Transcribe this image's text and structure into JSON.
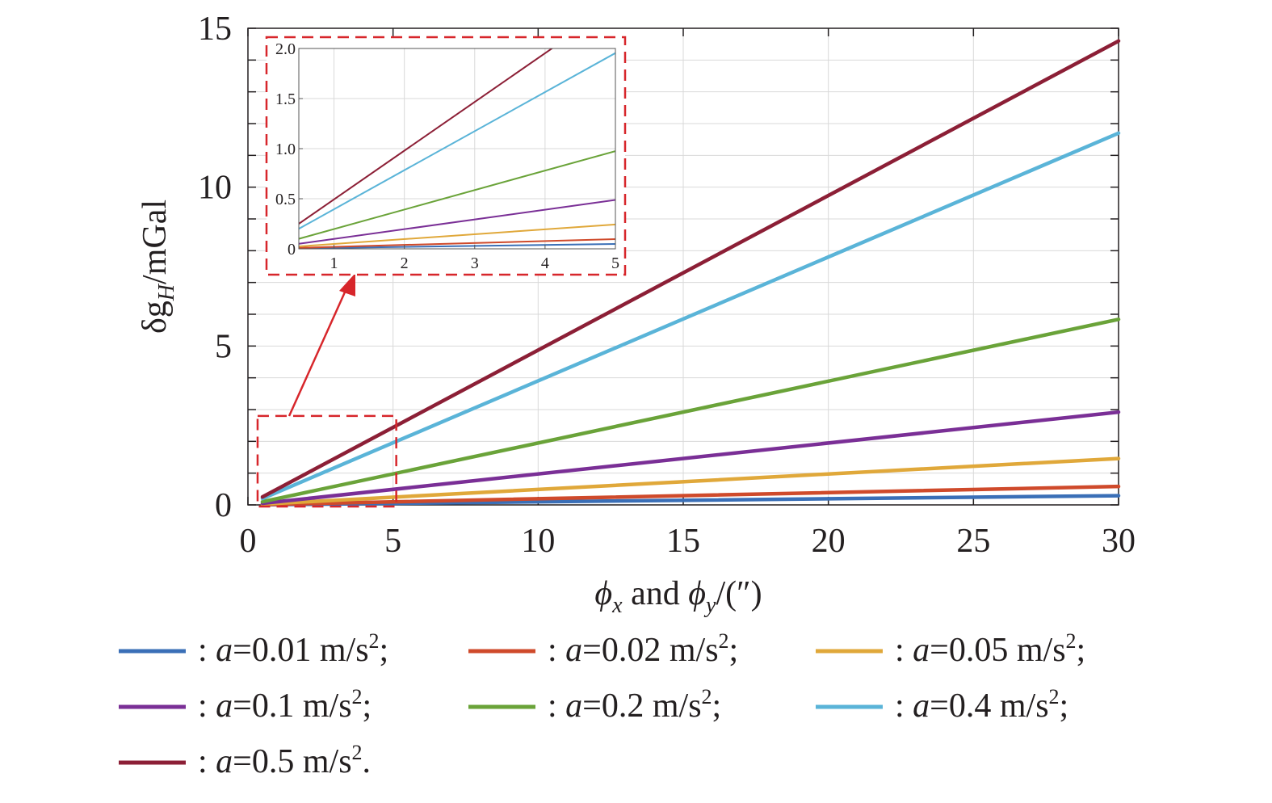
{
  "chart_data": {
    "type": "line",
    "x_title": {
      "sym": "ϕ",
      "sub1": "x",
      "mid": " and ",
      "sub2": "y",
      "tail": "/(″)"
    },
    "y_title": {
      "pre": "δg",
      "sub": "H",
      "post": "/mGal"
    },
    "xlim": [
      0,
      30
    ],
    "ylim": [
      0,
      15
    ],
    "xticks": [
      "0",
      "5",
      "10",
      "15",
      "20",
      "25",
      "30"
    ],
    "yticks": [
      "0",
      "5",
      "10",
      "15"
    ],
    "grid": true,
    "x": [
      0.5,
      30
    ],
    "series": [
      {
        "name": ": a=0.01 m/s²;",
        "a": "0.01",
        "end": ";",
        "color": "#3a6fb7",
        "values": [
          0.005,
          0.29
        ]
      },
      {
        "name": ": a=0.02 m/s²;",
        "a": "0.02",
        "end": ";",
        "color": "#cf4a2b",
        "values": [
          0.01,
          0.58
        ]
      },
      {
        "name": ": a=0.05 m/s²;",
        "a": "0.05",
        "end": ";",
        "color": "#e0a83a",
        "values": [
          0.024,
          1.46
        ]
      },
      {
        "name": ": a=0.1 m/s²;",
        "a": "0.1",
        "end": ";",
        "color": "#7a2f96",
        "values": [
          0.05,
          2.92
        ]
      },
      {
        "name": ": a=0.2 m/s²;",
        "a": "0.2",
        "end": ";",
        "color": "#6aa339",
        "values": [
          0.1,
          5.84
        ]
      },
      {
        "name": ": a=0.4 m/s²;",
        "a": "0.4",
        "end": ";",
        "color": "#5ab4d8",
        "values": [
          0.2,
          11.7
        ]
      },
      {
        "name": ": a=0.5 m/s².",
        "a": "0.5",
        "end": ".",
        "color": "#8c1f36",
        "values": [
          0.25,
          14.6
        ]
      }
    ],
    "inset": {
      "xlim": [
        0.5,
        5
      ],
      "ylim": [
        0,
        2.0
      ],
      "xticks": [
        "1",
        "2",
        "3",
        "4",
        "5"
      ],
      "yticks": [
        "0",
        "0.5",
        "1.0",
        "1.5",
        "2.0"
      ],
      "grid": true
    },
    "zoom_box": {
      "xlim": [
        0.5,
        5
      ],
      "ylim": [
        0,
        2.8
      ]
    },
    "legend_position": "bottom",
    "axis_color": "#231f20",
    "grid_color": "#d9d9d9",
    "annotation_color": "#d7262b"
  }
}
